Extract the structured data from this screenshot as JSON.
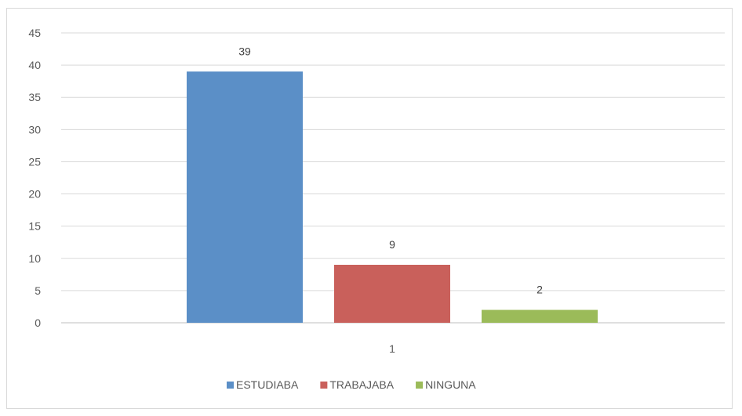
{
  "chart_data": {
    "type": "bar",
    "categories": [
      "1"
    ],
    "series": [
      {
        "name": "ESTUDIABA",
        "values": [
          39
        ],
        "color": "#5B8FC7"
      },
      {
        "name": "TRABAJABA",
        "values": [
          9
        ],
        "color": "#C9605B"
      },
      {
        "name": "NINGUNA",
        "values": [
          2
        ],
        "color": "#9BBB59"
      }
    ],
    "ylim": [
      0,
      45
    ],
    "yticks": [
      0,
      5,
      10,
      15,
      20,
      25,
      30,
      35,
      40,
      45
    ],
    "grid": true,
    "legend": "bottom",
    "data_labels": true
  }
}
